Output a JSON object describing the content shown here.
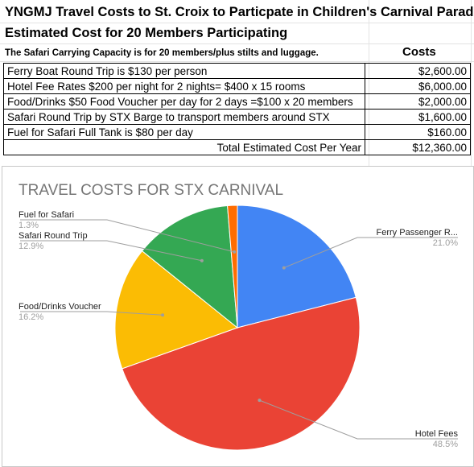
{
  "sheet": {
    "title1": "YNGMJ Travel Costs to St. Croix to Particpate in Children's Carnival Parade",
    "title2": "Estimated Cost for 20 Members Participating",
    "note": "The Safari Carrying Capacity is for 20 members/plus stilts and luggage.",
    "costs_header": "Costs",
    "rows": [
      {
        "label": "Ferry Boat Round Trip is $130 per person",
        "amount": "$2,600.00"
      },
      {
        "label": "Hotel Fee Rates $200 per night for 2 nights= $400 x 15 rooms",
        "amount": "$6,000.00"
      },
      {
        "label": "Food/Drinks $50 Food Voucher per day for 2 days =$100 x 20 members",
        "amount": "$2,000.00"
      },
      {
        "label": "Safari Round Trip by STX Barge to transport members around STX",
        "amount": "$1,600.00"
      },
      {
        "label": "Fuel for Safari Full Tank is $80 per day",
        "amount": "$160.00"
      }
    ],
    "total_label": "Total Estimated Cost Per Year",
    "total_amount": "$12,360.00"
  },
  "chart_data": {
    "type": "pie",
    "title": "TRAVEL COSTS FOR STX CARNIVAL",
    "slices": [
      {
        "name": "Ferry Passenger R...",
        "value": 21.0,
        "label": "21.0%",
        "color": "#4285f4"
      },
      {
        "name": "Hotel Fees",
        "value": 48.5,
        "label": "48.5%",
        "color": "#ea4335"
      },
      {
        "name": "Food/Drinks Voucher",
        "value": 16.2,
        "label": "16.2%",
        "color": "#fbbc04"
      },
      {
        "name": "Safari Round Trip",
        "value": 12.9,
        "label": "12.9%",
        "color": "#34a853"
      },
      {
        "name": "Fuel for Safari",
        "value": 1.3,
        "label": "1.3%",
        "color": "#ff6d01"
      }
    ],
    "legend": "labels with leader lines"
  }
}
